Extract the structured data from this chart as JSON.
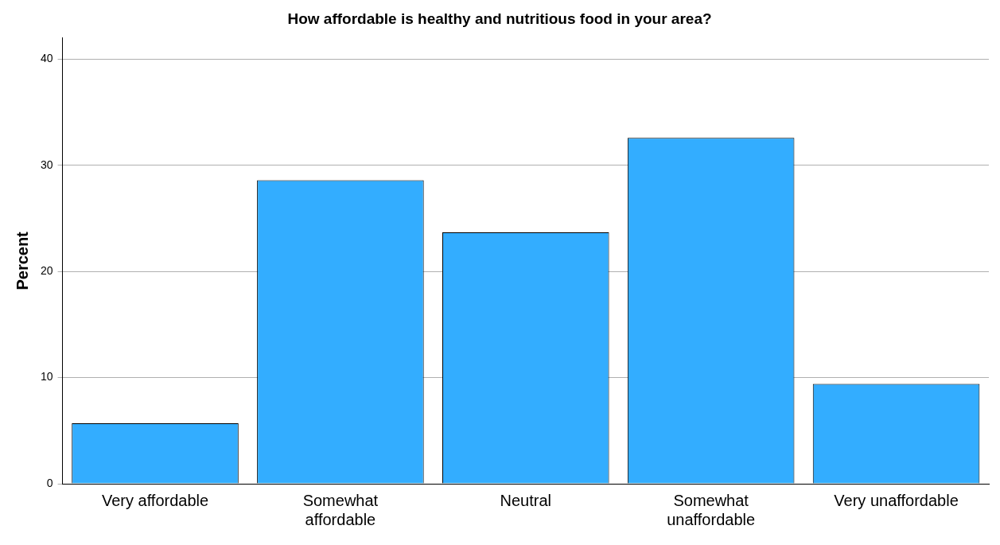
{
  "chart_data": {
    "type": "bar",
    "title": "How affordable is healthy and nutritious food in your area?",
    "ylabel": "Percent",
    "categories": [
      "Very affordable",
      "Somewhat affordable",
      "Neutral",
      "Somewhat unaffordable",
      "Very unaffordable"
    ],
    "values": [
      5.7,
      28.6,
      23.7,
      32.6,
      9.4
    ],
    "color": "#33adff",
    "ylim": [
      0,
      42
    ],
    "yticks": [
      0,
      10,
      20,
      30,
      40
    ],
    "grid": "y",
    "legend": false
  }
}
